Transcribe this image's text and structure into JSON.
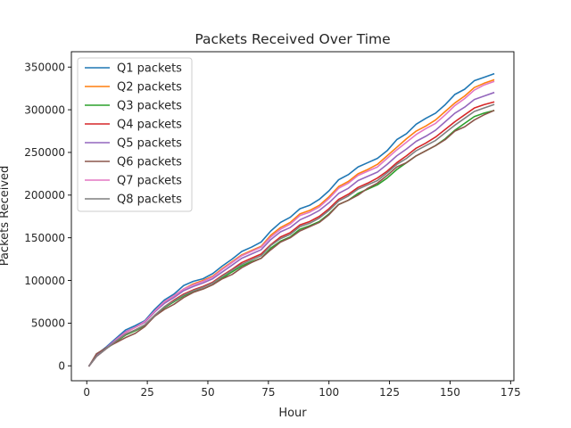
{
  "chart_data": {
    "type": "line",
    "title": "Packets Received Over Time",
    "xlabel": "Hour",
    "ylabel": "Packets Received",
    "xlim": [
      -6.35,
      176.35
    ],
    "ylim": [
      -17500,
      368000
    ],
    "xticks": [
      0,
      25,
      50,
      75,
      100,
      125,
      150,
      175
    ],
    "yticks": [
      0,
      50000,
      100000,
      150000,
      200000,
      250000,
      300000,
      350000
    ],
    "grid": false,
    "legend_position": "top-left",
    "x": [
      1,
      4,
      8,
      12,
      16,
      20,
      24,
      28,
      32,
      36,
      40,
      44,
      48,
      52,
      56,
      60,
      64,
      68,
      72,
      76,
      80,
      84,
      88,
      92,
      96,
      100,
      104,
      108,
      112,
      116,
      120,
      124,
      128,
      132,
      136,
      140,
      144,
      148,
      152,
      156,
      160,
      164,
      168
    ],
    "series": [
      {
        "name": "Q1 packets",
        "color": "#1f77b4",
        "values": [
          0,
          13000,
          22000,
          32000,
          42000,
          47000,
          53000,
          66000,
          77000,
          84000,
          94000,
          99000,
          102000,
          108000,
          117000,
          125000,
          134000,
          139000,
          145000,
          158000,
          168000,
          174000,
          184000,
          188000,
          195000,
          205000,
          218000,
          224000,
          233000,
          238000,
          243000,
          252000,
          265000,
          272000,
          283000,
          290000,
          296000,
          306000,
          318000,
          324000,
          334000,
          338000,
          342000
        ]
      },
      {
        "name": "Q2 packets",
        "color": "#ff7f0e",
        "values": [
          0,
          12000,
          21000,
          30000,
          39000,
          45000,
          51000,
          63000,
          74000,
          82000,
          90000,
          96000,
          100000,
          105000,
          114000,
          122000,
          130000,
          135000,
          140000,
          153000,
          162000,
          168000,
          178000,
          182000,
          188000,
          198000,
          210000,
          216000,
          225000,
          230000,
          236000,
          246000,
          256000,
          266000,
          275000,
          281000,
          288000,
          298000,
          308000,
          316000,
          326000,
          331000,
          335000
        ]
      },
      {
        "name": "Q3 packets",
        "color": "#2ca02c",
        "values": [
          0,
          11000,
          20000,
          28000,
          36000,
          41000,
          47000,
          58000,
          68000,
          75000,
          82000,
          87000,
          90000,
          95000,
          103000,
          110000,
          117000,
          122000,
          126000,
          138000,
          146000,
          151000,
          160000,
          164000,
          169000,
          178000,
          189000,
          194000,
          202000,
          207000,
          212000,
          220000,
          230000,
          238000,
          246000,
          252000,
          258000,
          266000,
          276000,
          284000,
          292000,
          296000,
          299000
        ]
      },
      {
        "name": "Q4 packets",
        "color": "#d62728",
        "values": [
          0,
          11000,
          20000,
          29000,
          37000,
          42000,
          48000,
          59000,
          69000,
          77000,
          84000,
          89000,
          93000,
          98000,
          106000,
          113000,
          121000,
          126000,
          131000,
          142000,
          151000,
          156000,
          165000,
          169000,
          175000,
          184000,
          195000,
          201000,
          209000,
          214000,
          220000,
          228000,
          238000,
          246000,
          255000,
          261000,
          268000,
          277000,
          286000,
          294000,
          302000,
          306000,
          309000
        ]
      },
      {
        "name": "Q5 packets",
        "color": "#9467bd",
        "values": [
          0,
          12000,
          21000,
          31000,
          40000,
          45000,
          51000,
          63000,
          73000,
          80000,
          88000,
          93000,
          97000,
          102000,
          110000,
          118000,
          126000,
          131000,
          136000,
          148000,
          157000,
          162000,
          171000,
          176000,
          182000,
          191000,
          202000,
          208000,
          217000,
          222000,
          227000,
          236000,
          246000,
          254000,
          263000,
          269000,
          276000,
          286000,
          296000,
          303000,
          312000,
          316000,
          320000
        ]
      },
      {
        "name": "Q6 packets",
        "color": "#8c564b",
        "values": [
          0,
          14000,
          21000,
          27000,
          33000,
          38000,
          46000,
          58000,
          66000,
          72000,
          80000,
          86000,
          90000,
          95000,
          102000,
          107000,
          115000,
          121000,
          126000,
          136000,
          145000,
          150000,
          158000,
          163000,
          168000,
          177000,
          189000,
          194000,
          200000,
          208000,
          214000,
          223000,
          233000,
          238000,
          246000,
          252000,
          258000,
          265000,
          275000,
          280000,
          288000,
          294000,
          299000
        ]
      },
      {
        "name": "Q7 packets",
        "color": "#e377c2",
        "values": [
          0,
          11000,
          20000,
          30000,
          39000,
          45000,
          52000,
          64000,
          75000,
          82000,
          90000,
          95000,
          99000,
          104000,
          113000,
          121000,
          129000,
          134000,
          139000,
          151000,
          160000,
          166000,
          176000,
          180000,
          186000,
          196000,
          208000,
          214000,
          223000,
          228000,
          233000,
          243000,
          253000,
          262000,
          271000,
          278000,
          284000,
          294000,
          305000,
          313000,
          323000,
          329000,
          333000
        ]
      },
      {
        "name": "Q8 packets",
        "color": "#7f7f7f",
        "values": [
          0,
          11000,
          20000,
          29000,
          37000,
          42000,
          48000,
          59000,
          69000,
          76000,
          83000,
          88000,
          92000,
          97000,
          105000,
          112000,
          119000,
          124000,
          129000,
          141000,
          149000,
          154000,
          163000,
          167000,
          173000,
          182000,
          193000,
          199000,
          207000,
          212000,
          217000,
          226000,
          236000,
          243000,
          252000,
          258000,
          264000,
          273000,
          282000,
          290000,
          298000,
          302000,
          306000
        ]
      }
    ]
  }
}
